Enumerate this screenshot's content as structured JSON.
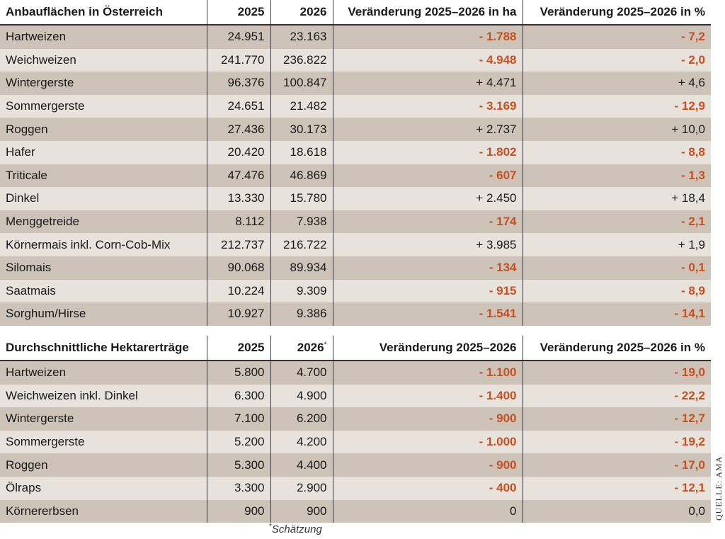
{
  "table1": {
    "headers": [
      "Anbauflächen in Österreich",
      "2025",
      "2026",
      "Veränderung 2025–2026 in ha",
      "Veränderung 2025–2026 in %"
    ],
    "rows": [
      [
        "Hartweizen",
        "24.951",
        "23.163",
        "- 1.788",
        "- 7,2"
      ],
      [
        "Weichweizen",
        "241.770",
        "236.822",
        "- 4.948",
        "- 2,0"
      ],
      [
        "Wintergerste",
        "96.376",
        "100.847",
        "+ 4.471",
        "+ 4,6"
      ],
      [
        "Sommergerste",
        "24.651",
        "21.482",
        "- 3.169",
        "- 12,9"
      ],
      [
        "Roggen",
        "27.436",
        "30.173",
        "+ 2.737",
        "+ 10,0"
      ],
      [
        "Hafer",
        "20.420",
        "18.618",
        "- 1.802",
        "- 8,8"
      ],
      [
        "Triticale",
        "47.476",
        "46.869",
        "- 607",
        "- 1,3"
      ],
      [
        "Dinkel",
        "13.330",
        "15.780",
        "+ 2.450",
        "+ 18,4"
      ],
      [
        "Menggetreide",
        "8.112",
        "7.938",
        "- 174",
        "- 2,1"
      ],
      [
        "Körnermais inkl. Corn-Cob-Mix",
        "212.737",
        "216.722",
        "+ 3.985",
        "+ 1,9"
      ],
      [
        "Silomais",
        "90.068",
        "89.934",
        "- 134",
        "- 0,1"
      ],
      [
        "Saatmais",
        "10.224",
        "9.309",
        "- 915",
        "- 8,9"
      ],
      [
        "Sorghum/Hirse",
        "10.927",
        "9.386",
        "- 1.541",
        "- 14,1"
      ]
    ]
  },
  "table2": {
    "headers": [
      "Durchschnittliche Hektarerträge",
      "2025",
      "2026",
      "Veränderung 2025–2026",
      "Veränderung 2025–2026 in %"
    ],
    "header_marker": "*",
    "rows": [
      [
        "Hartweizen",
        "5.800",
        "4.700",
        "- 1.100",
        "- 19,0"
      ],
      [
        "Weichweizen inkl. Dinkel",
        "6.300",
        "4.900",
        "- 1.400",
        "- 22,2"
      ],
      [
        "Wintergerste",
        "7.100",
        "6.200",
        "- 900",
        "- 12,7"
      ],
      [
        "Sommergerste",
        "5.200",
        "4.200",
        "- 1.000",
        "- 19,2"
      ],
      [
        "Roggen",
        "5.300",
        "4.400",
        "- 900",
        "- 17,0"
      ],
      [
        "Ölraps",
        "3.300",
        "2.900",
        "- 400",
        "- 12,1"
      ],
      [
        "Körnererbsen",
        "900",
        "900",
        "0",
        "0,0"
      ]
    ]
  },
  "footnote": {
    "marker": "*",
    "text": "Schätzung"
  },
  "source": "QUELLE: AMA",
  "colors": {
    "negative": "#c8501f",
    "row_dark": "#cdc3b9",
    "row_light": "#e7e2dc"
  }
}
